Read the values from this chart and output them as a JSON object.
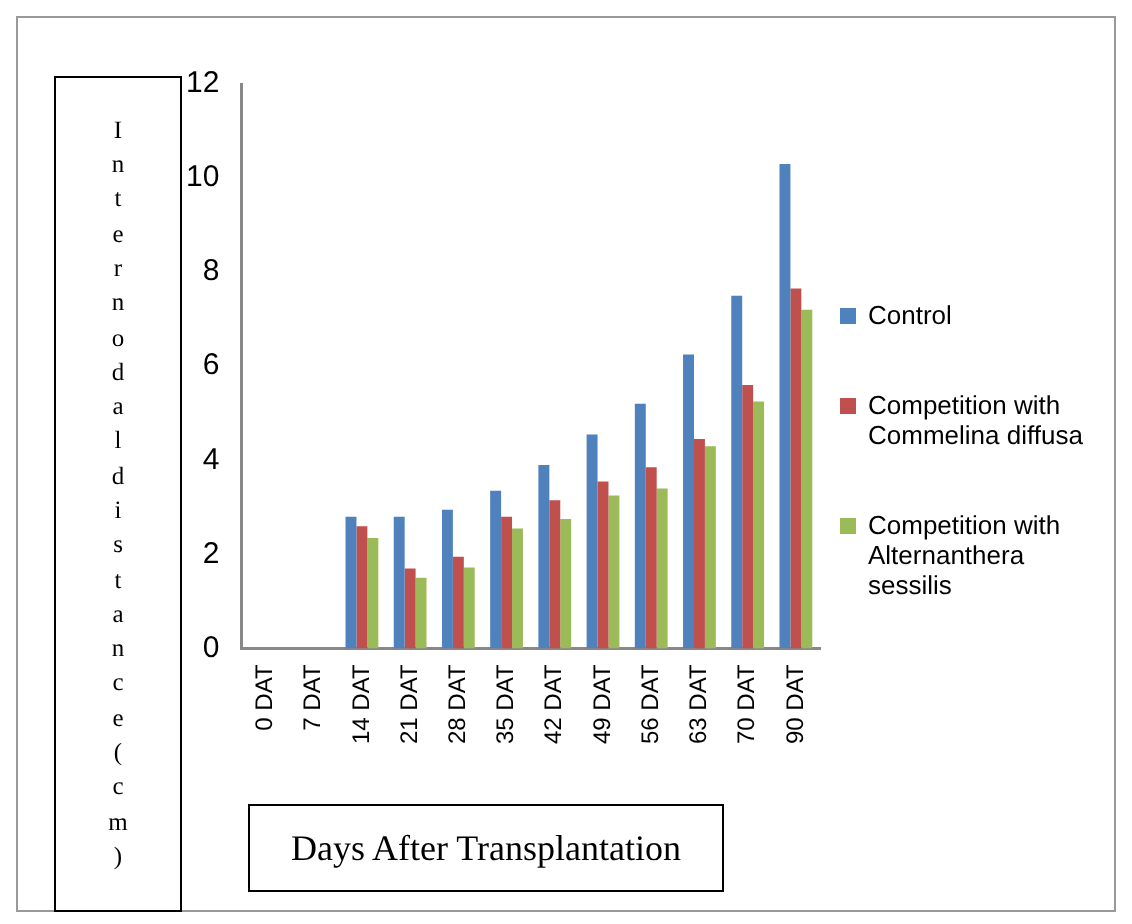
{
  "chart_data": {
    "type": "bar",
    "xlabel": "Days After Transplantation",
    "ylabel": "Internodal distance (cm)",
    "categories": [
      "0 DAT",
      "7 DAT",
      "14 DAT",
      "21 DAT",
      "28 DAT",
      "35 DAT",
      "42 DAT",
      "49 DAT",
      "56 DAT",
      "63 DAT",
      "70 DAT",
      "90 DAT"
    ],
    "series": [
      {
        "name": "Control",
        "color": "#4f81bd",
        "values": [
          0,
          0,
          2.8,
          2.8,
          2.95,
          3.35,
          3.9,
          4.55,
          5.2,
          6.25,
          7.5,
          10.3
        ]
      },
      {
        "name": "Competition with Commelina diffusa",
        "color": "#c0504d",
        "values": [
          0,
          0,
          2.6,
          1.7,
          1.95,
          2.8,
          3.15,
          3.55,
          3.85,
          4.45,
          5.6,
          7.65
        ]
      },
      {
        "name": "Competition with Alternanthera sessilis",
        "color": "#9bbb59",
        "values": [
          0,
          0,
          2.35,
          1.5,
          1.72,
          2.55,
          2.75,
          3.25,
          3.4,
          4.3,
          5.25,
          7.2
        ]
      }
    ],
    "ylim": [
      0,
      12
    ],
    "yticks": [
      0,
      2,
      4,
      6,
      8,
      10,
      12
    ],
    "grid": false,
    "legend": "right"
  }
}
